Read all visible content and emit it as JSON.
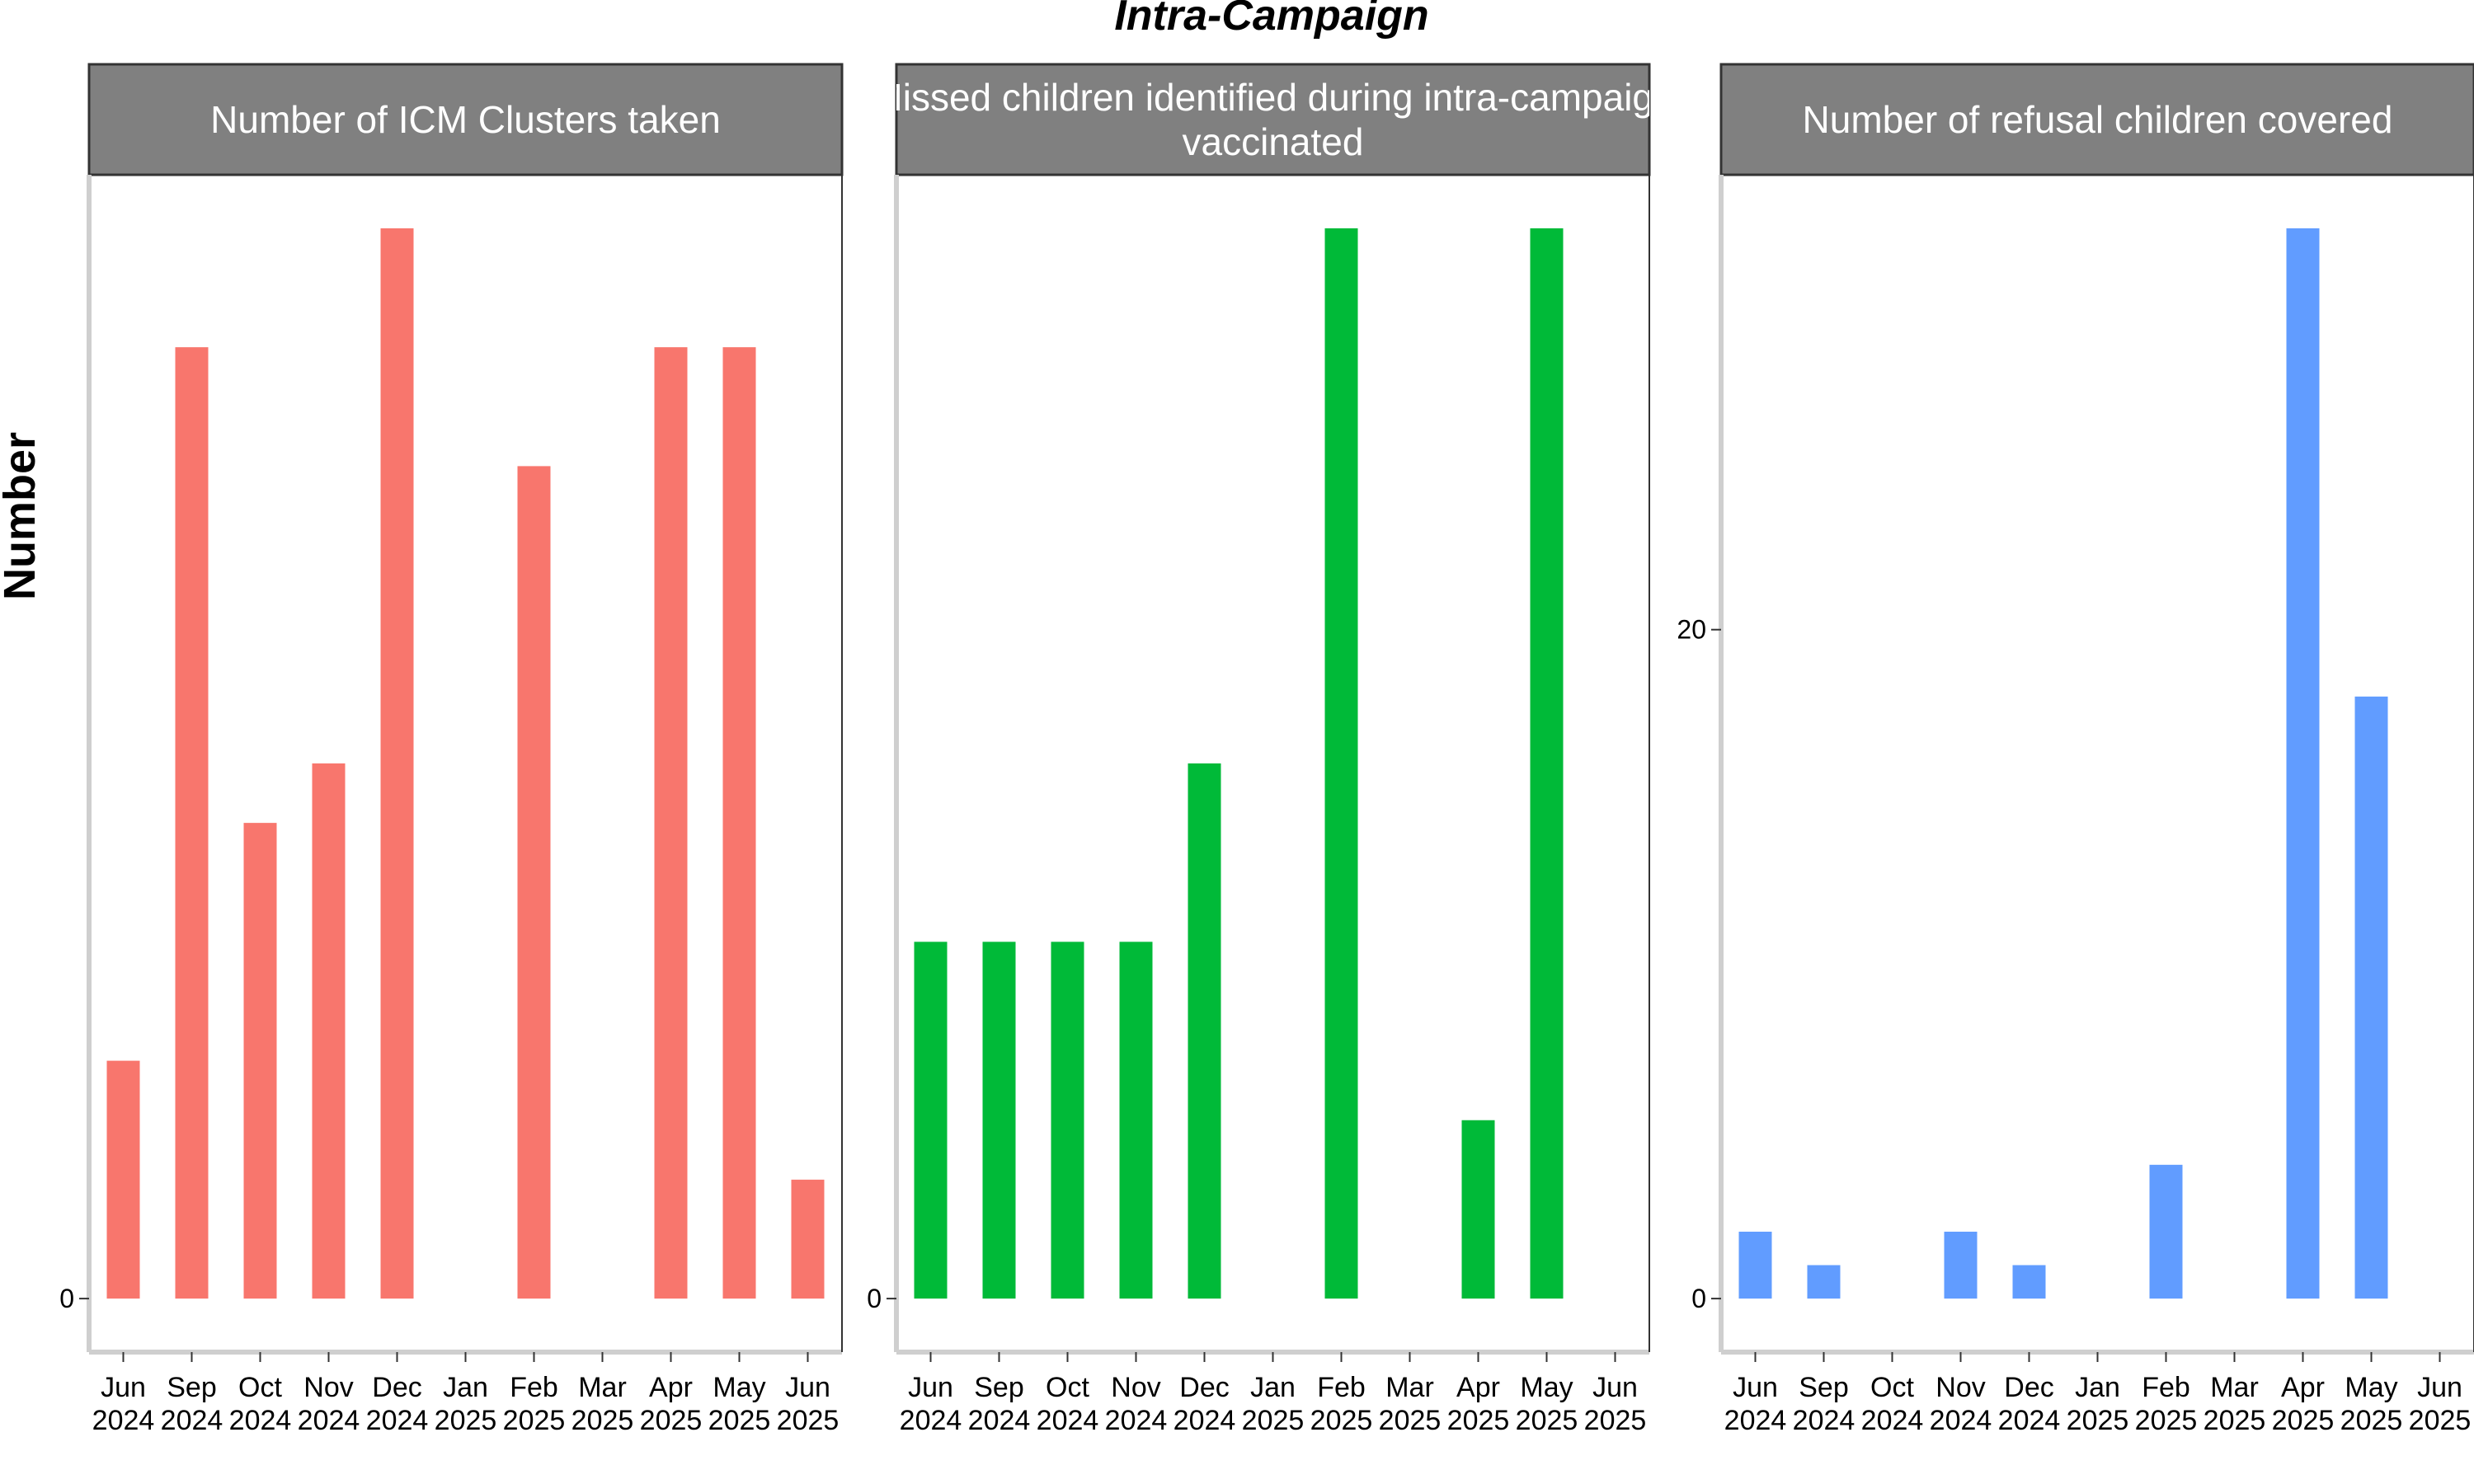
{
  "figure": {
    "title": "Intra-Campaign",
    "ylabel": "Number"
  },
  "chart_data": [
    {
      "type": "bar",
      "title": "Number of ICM Clusters taken",
      "title_lines": [
        "Number of ICM Clusters taken"
      ],
      "color": "#F8766D",
      "categories": [
        "Jun 2024",
        "Sep 2024",
        "Oct 2024",
        "Nov 2024",
        "Dec 2024",
        "Jan 2025",
        "Feb 2025",
        "Mar 2025",
        "Apr 2025",
        "May 2025",
        "Jun 2025"
      ],
      "tick_month": [
        "Jun",
        "Sep",
        "Oct",
        "Nov",
        "Dec",
        "Jan",
        "Feb",
        "Mar",
        "Apr",
        "May",
        "Jun"
      ],
      "tick_year": [
        "2024",
        "2024",
        "2024",
        "2024",
        "2024",
        "2025",
        "2025",
        "2025",
        "2025",
        "2025",
        "2025"
      ],
      "values": [
        2,
        8,
        4,
        4.5,
        9,
        null,
        7,
        null,
        8,
        8,
        1
      ],
      "ylim": [
        -0.45,
        9.45
      ],
      "yticks": [
        0
      ],
      "ytick_labels": [
        "0"
      ],
      "xlabel": "",
      "ylabel": ""
    },
    {
      "type": "bar",
      "title": "Missed children identified during intra-campaign vaccinated",
      "title_lines": [
        "Missed children identified during intra-campaign",
        "vaccinated"
      ],
      "color": "#00BA38",
      "categories": [
        "Jun 2024",
        "Sep 2024",
        "Oct 2024",
        "Nov 2024",
        "Dec 2024",
        "Jan 2025",
        "Feb 2025",
        "Mar 2025",
        "Apr 2025",
        "May 2025",
        "Jun 2025"
      ],
      "tick_month": [
        "Jun",
        "Sep",
        "Oct",
        "Nov",
        "Dec",
        "Jan",
        "Feb",
        "Mar",
        "Apr",
        "May",
        "Jun"
      ],
      "tick_year": [
        "2024",
        "2024",
        "2024",
        "2024",
        "2024",
        "2025",
        "2025",
        "2025",
        "2025",
        "2025",
        "2025"
      ],
      "values": [
        3,
        3,
        3,
        3,
        4.5,
        null,
        9,
        null,
        1.5,
        9,
        null
      ],
      "ylim": [
        -0.45,
        9.45
      ],
      "yticks": [
        0
      ],
      "ytick_labels": [
        "0"
      ],
      "xlabel": "",
      "ylabel": ""
    },
    {
      "type": "bar",
      "title": "Number of refusal children covered",
      "title_lines": [
        "Number of refusal children covered"
      ],
      "color": "#619CFF",
      "categories": [
        "Jun 2024",
        "Sep 2024",
        "Oct 2024",
        "Nov 2024",
        "Dec 2024",
        "Jan 2025",
        "Feb 2025",
        "Mar 2025",
        "Apr 2025",
        "May 2025",
        "Jun 2025"
      ],
      "tick_month": [
        "Jun",
        "Sep",
        "Oct",
        "Nov",
        "Dec",
        "Jan",
        "Feb",
        "Mar",
        "Apr",
        "May",
        "Jun"
      ],
      "tick_year": [
        "2024",
        "2024",
        "2024",
        "2024",
        "2024",
        "2025",
        "2025",
        "2025",
        "2025",
        "2025",
        "2025"
      ],
      "values": [
        2,
        1,
        null,
        2,
        1,
        null,
        4,
        null,
        32,
        18,
        null
      ],
      "ylim": [
        -1.6,
        33.6
      ],
      "yticks": [
        0,
        20
      ],
      "ytick_labels": [
        "0",
        "20"
      ],
      "xlabel": "",
      "ylabel": ""
    }
  ]
}
